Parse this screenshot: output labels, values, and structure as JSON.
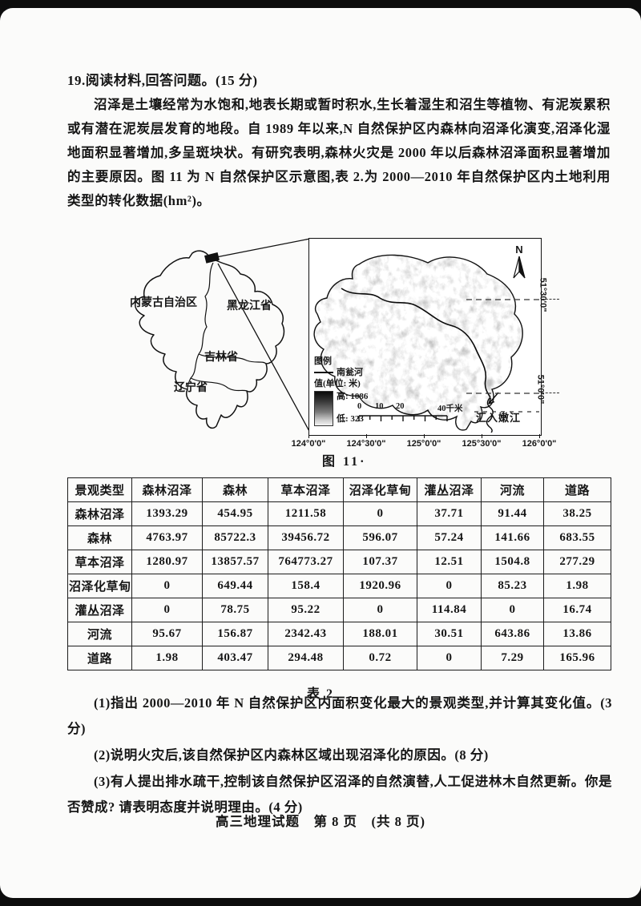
{
  "question": {
    "header": "19.阅读材料,回答问题。(15 分)",
    "paragraph": "沼泽是土壤经常为水饱和,地表长期或暂时积水,生长着湿生和沼生等植物、有泥炭累积或有潜在泥炭层发育的地段。自 1989 年以来,N 自然保护区内森林向沼泽化演变,沼泽化湿地面积显著增加,多呈斑块状。有研究表明,森林火灾是 2000 年以后森林沼泽面积显著增加的主要原因。图 11 为 N 自然保护区示意图,表 2.为 2000—2010 年自然保护区内土地利用类型的转化数据(hm²)。",
    "sub_questions": [
      "(1)指出 2000—2010 年 N 自然保护区内面积变化最大的景观类型,并计算其变化值。(3 分)",
      "(2)说明火灾后,该自然保护区内森林区域出现沼泽化的原因。(8 分)",
      "(3)有人提出排水疏干,控制该自然保护区沼泽的自然演替,人工促进林木自然更新。你是否赞成? 请表明态度并说明理由。(4 分)"
    ]
  },
  "figure": {
    "caption": "图 11·",
    "inset": {
      "province_labels": [
        "内蒙古自治区",
        "黑龙江省",
        "吉林省",
        "辽宁省"
      ]
    },
    "map": {
      "north_label": "N",
      "legend_title": "图例",
      "legend_river": "南瓮河",
      "legend_value_label": "值(单位: 米)",
      "legend_high": "高: 1086",
      "legend_low": "低: 323",
      "scale_labels": [
        "0",
        "10",
        "20",
        "40千米"
      ],
      "outflow_label": "汇入嫩江",
      "lat_labels": [
        "51°30'0\"",
        "51°0'0\""
      ],
      "lon_labels": [
        "124°0'0\"",
        "124°30'0\"",
        "125°0'0\"",
        "125°30'0\"",
        "126°0'0\""
      ]
    }
  },
  "table": {
    "caption": "表 2",
    "headers": [
      "景观类型",
      "森林沼泽",
      "森林",
      "草本沼泽",
      "沼泽化草甸",
      "灌丛沼泽",
      "河流",
      "道路"
    ],
    "rows": [
      [
        "森林沼泽",
        "1393.29",
        "454.95",
        "1211.58",
        "0",
        "37.71",
        "91.44",
        "38.25"
      ],
      [
        "森林",
        "4763.97",
        "85722.3",
        "39456.72",
        "596.07",
        "57.24",
        "141.66",
        "683.55"
      ],
      [
        "草本沼泽",
        "1280.97",
        "13857.57",
        "764773.27",
        "107.37",
        "12.51",
        "1504.8",
        "277.29"
      ],
      [
        "沼泽化草甸",
        "0",
        "649.44",
        "158.4",
        "1920.96",
        "0",
        "85.23",
        "1.98"
      ],
      [
        "灌丛沼泽",
        "0",
        "78.75",
        "95.22",
        "0",
        "114.84",
        "0",
        "16.74"
      ],
      [
        "河流",
        "95.67",
        "156.87",
        "2342.43",
        "188.01",
        "30.51",
        "643.86",
        "13.86"
      ],
      [
        "道路",
        "1.98",
        "403.47",
        "294.48",
        "0.72",
        "0",
        "7.29",
        "165.96"
      ]
    ]
  },
  "footer": "高三地理试题　第 8 页　(共 8 页)"
}
